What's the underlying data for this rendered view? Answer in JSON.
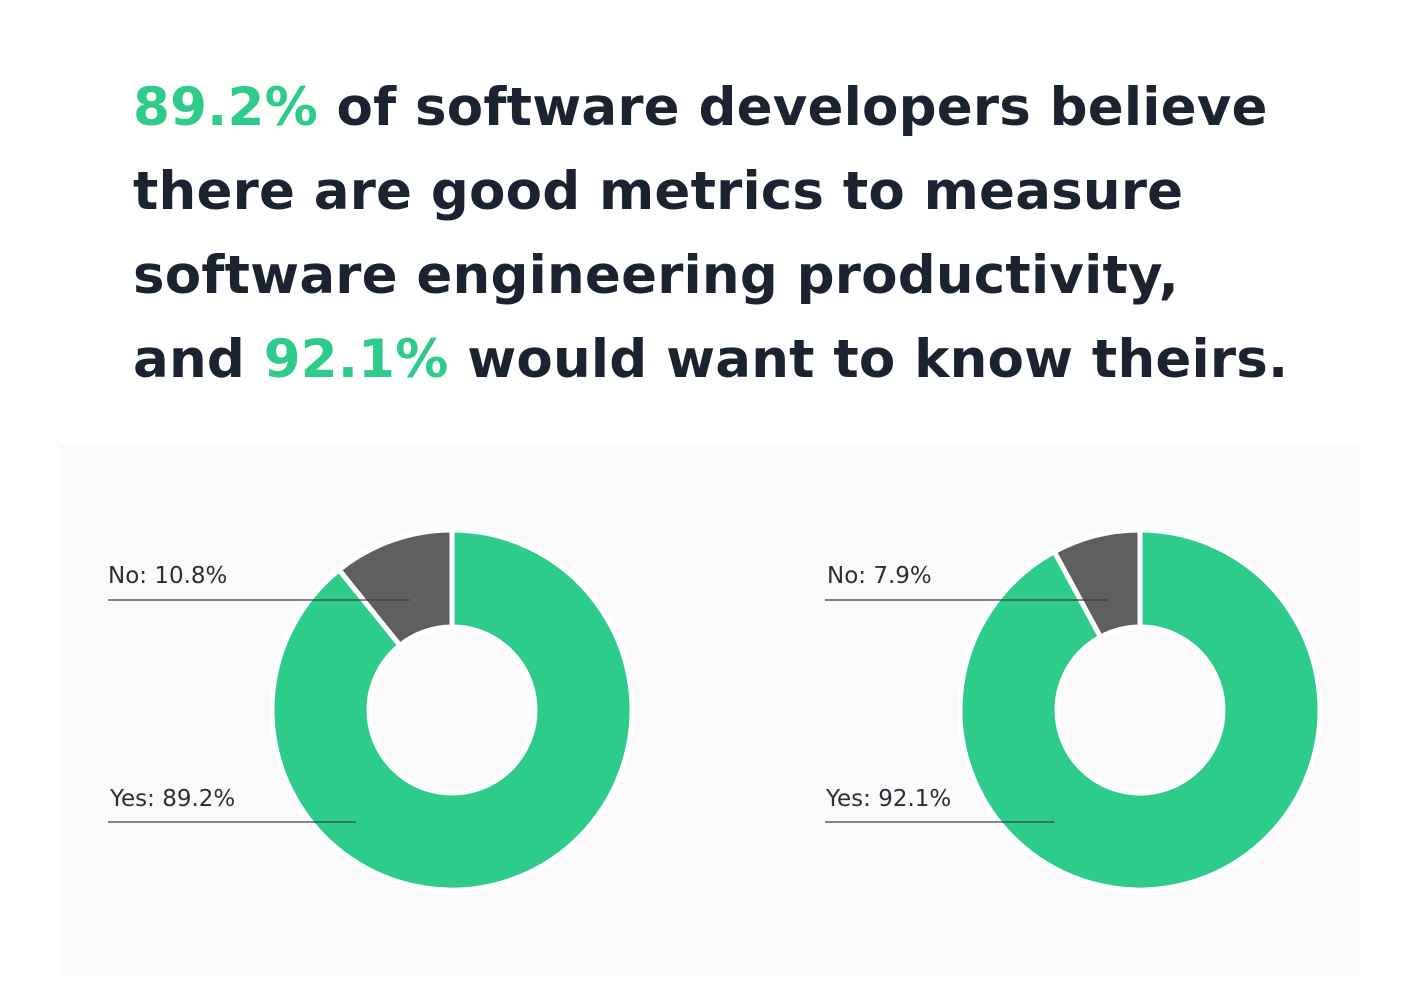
{
  "headline": {
    "lines": [
      {
        "accent": "89.2%",
        "text": " of software developers believe"
      },
      {
        "text": "there are good metrics to measure"
      },
      {
        "text": "software engineering productivity,"
      },
      {
        "before": "and ",
        "accent": "92.1%",
        "text": " would want to know theirs."
      }
    ]
  },
  "colors": {
    "accent": "#2ecc8a",
    "yes_slice": "#2ecc8a",
    "no_slice": "#5f5f5f",
    "text_dark": "#1b2330",
    "panel_bg": "#fafafa",
    "leader_line": "#3a3f47"
  },
  "chart_data": [
    {
      "type": "pie",
      "variant": "donut",
      "name": "believe-good-metrics",
      "categories": [
        "No",
        "Yes"
      ],
      "values": [
        10.8,
        89.2
      ],
      "unit": "%",
      "labels": [
        "No: 10.8%",
        "Yes: 89.2%"
      ]
    },
    {
      "type": "pie",
      "variant": "donut",
      "name": "want-to-know-theirs",
      "categories": [
        "No",
        "Yes"
      ],
      "values": [
        7.9,
        92.1
      ],
      "unit": "%",
      "labels": [
        "No: 7.9%",
        "Yes: 92.1%"
      ]
    }
  ]
}
